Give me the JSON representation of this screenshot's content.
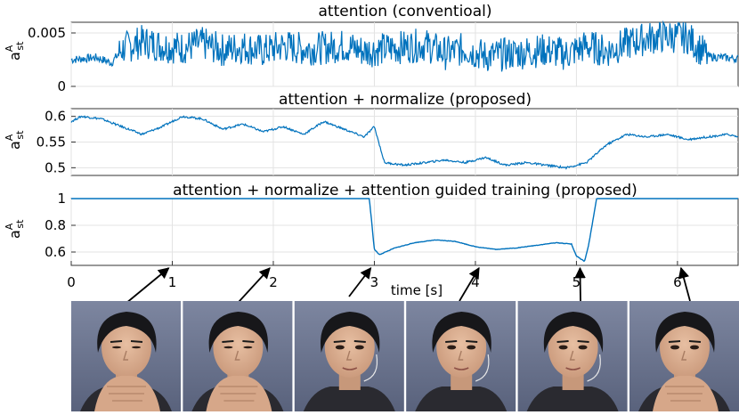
{
  "chart_data": [
    {
      "type": "line",
      "title": "attention (conventioal)",
      "ylabel": "a",
      "ylabel_sup": "A",
      "ylabel_sub": "st",
      "ylim": [
        0,
        0.006
      ],
      "yticks": [
        "0",
        "0.005"
      ],
      "ytick_values": [
        0,
        0.005
      ],
      "grid": true,
      "series": [
        {
          "x": [
            0.0,
            0.25,
            0.4,
            0.5,
            0.7,
            0.9,
            1.1,
            1.3,
            1.5,
            1.7,
            1.9,
            2.1,
            2.3,
            2.5,
            2.7,
            2.9,
            3.1,
            3.3,
            3.5,
            3.7,
            3.9,
            4.1,
            4.3,
            4.5,
            4.7,
            4.9,
            5.1,
            5.3,
            5.5,
            5.7,
            5.9,
            6.1,
            6.3,
            6.6
          ],
          "y": [
            0.0025,
            0.0027,
            0.0022,
            0.0035,
            0.0042,
            0.0038,
            0.0036,
            0.004,
            0.0034,
            0.0037,
            0.0033,
            0.0038,
            0.0035,
            0.0036,
            0.0038,
            0.0033,
            0.0035,
            0.0037,
            0.0039,
            0.0031,
            0.0035,
            0.0028,
            0.003,
            0.0032,
            0.0034,
            0.003,
            0.0038,
            0.0033,
            0.004,
            0.0045,
            0.0047,
            0.0046,
            0.0028,
            0.0026
          ]
        }
      ]
    },
    {
      "type": "line",
      "title": "attention + normalize (proposed)",
      "ylabel": "a",
      "ylabel_sup": "A",
      "ylabel_sub": "st",
      "ylim": [
        0.485,
        0.615
      ],
      "yticks": [
        "0.5",
        "0.55",
        "0.6"
      ],
      "ytick_values": [
        0.5,
        0.55,
        0.6
      ],
      "grid": true,
      "series": [
        {
          "x": [
            0.0,
            0.1,
            0.3,
            0.5,
            0.7,
            0.9,
            1.1,
            1.3,
            1.5,
            1.7,
            1.9,
            2.1,
            2.3,
            2.5,
            2.7,
            2.9,
            3.0,
            3.1,
            3.3,
            3.5,
            3.7,
            3.9,
            4.1,
            4.3,
            4.5,
            4.7,
            4.9,
            5.1,
            5.3,
            5.5,
            5.7,
            5.9,
            6.1,
            6.3,
            6.5,
            6.6
          ],
          "y": [
            0.59,
            0.6,
            0.595,
            0.58,
            0.565,
            0.58,
            0.6,
            0.595,
            0.575,
            0.585,
            0.57,
            0.58,
            0.565,
            0.59,
            0.575,
            0.56,
            0.58,
            0.51,
            0.505,
            0.51,
            0.515,
            0.51,
            0.52,
            0.505,
            0.51,
            0.505,
            0.5,
            0.51,
            0.545,
            0.565,
            0.56,
            0.565,
            0.555,
            0.56,
            0.565,
            0.56
          ]
        }
      ]
    },
    {
      "type": "line",
      "title": "attention + normalize + attention guided training (proposed)",
      "ylabel": "a",
      "ylabel_sup": "A",
      "ylabel_sub": "st",
      "xlabel": "time [s]",
      "xlim": [
        0,
        6.6
      ],
      "ylim": [
        0.5,
        1.0
      ],
      "yticks": [
        "0.6",
        "0.8",
        "1"
      ],
      "ytick_values": [
        0.6,
        0.8,
        1.0
      ],
      "xticks": [
        "0",
        "1",
        "2",
        "3",
        "4",
        "5",
        "6"
      ],
      "xtick_values": [
        0,
        1,
        2,
        3,
        4,
        5,
        6
      ],
      "grid": true,
      "series": [
        {
          "x": [
            0.0,
            2.95,
            2.97,
            3.0,
            3.05,
            3.2,
            3.4,
            3.6,
            3.8,
            4.0,
            4.2,
            4.4,
            4.6,
            4.8,
            4.95,
            5.0,
            5.08,
            5.12,
            5.2,
            6.6
          ],
          "y": [
            1.0,
            1.0,
            0.85,
            0.62,
            0.58,
            0.63,
            0.67,
            0.69,
            0.68,
            0.64,
            0.62,
            0.63,
            0.65,
            0.67,
            0.66,
            0.57,
            0.53,
            0.65,
            1.0,
            1.0
          ]
        }
      ]
    }
  ],
  "frame_times": [
    1,
    2,
    3,
    4,
    5,
    6
  ],
  "photos": [
    "face-frame-1",
    "face-frame-2",
    "face-frame-3",
    "face-frame-4",
    "face-frame-5",
    "face-frame-6"
  ],
  "colors": {
    "line": "#0072BD",
    "grid": "#e3e3e3"
  }
}
